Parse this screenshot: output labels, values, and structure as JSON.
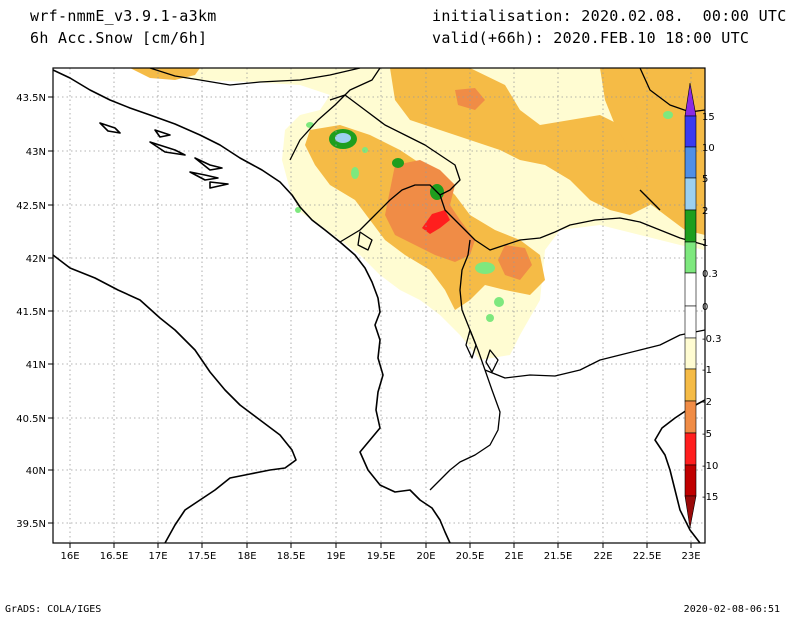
{
  "header": {
    "model": "wrf-nmmE_v3.9.1-a3km",
    "variable": "6h Acc.Snow [cm/6h]",
    "init": "initialisation: 2020.02.08.  00:00 UTC",
    "valid": "valid(+66h): 2020.FEB.10 18:00 UTC"
  },
  "footer": {
    "left": "GrADS: COLA/IGES",
    "right": "2020-02-08-06:51"
  },
  "map": {
    "lon_ticks": [
      "16E",
      "16.5E",
      "17E",
      "17.5E",
      "18E",
      "18.5E",
      "19E",
      "19.5E",
      "20E",
      "20.5E",
      "21E",
      "21.5E",
      "22E",
      "22.5E",
      "23E"
    ],
    "lat_ticks": [
      "43.5N",
      "43N",
      "42.5N",
      "42N",
      "41.5N",
      "41N",
      "40.5N",
      "40N",
      "39.5N"
    ],
    "grid": true
  },
  "colorbar": {
    "labels": [
      "15",
      "10",
      "5",
      "2",
      "1",
      "0.3",
      "0",
      "-0.3",
      "-1",
      "-2",
      "-5",
      "-10",
      "-15"
    ],
    "colors": {
      "purple": "#8a2be2",
      "blue": "#3a3af0",
      "medblue": "#4f8fe6",
      "lightblue": "#9cd0f0",
      "green": "#1e9e1e",
      "lightgreen": "#7ee87e",
      "white": "#ffffff",
      "cream": "#fffcd2",
      "orange": "#f5bb46",
      "darkorange": "#f08c46",
      "red": "#ff1e1e",
      "darkred": "#c00000",
      "maroon": "#9a0a0a"
    }
  }
}
